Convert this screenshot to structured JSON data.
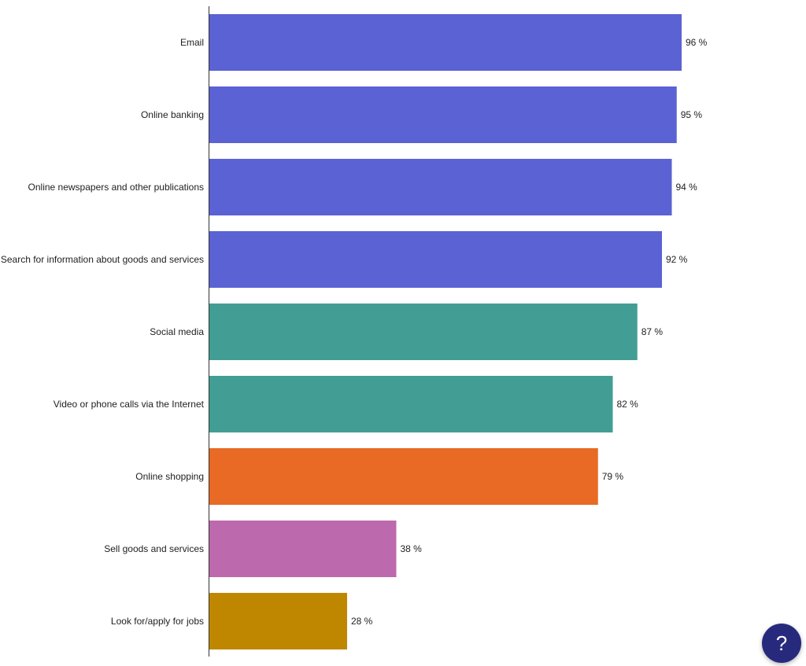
{
  "chart_data": {
    "type": "bar",
    "orientation": "horizontal",
    "categories": [
      "Email",
      "Online banking",
      "Online newspapers and other publications",
      "Search for information about goods and services",
      "Social media",
      "Video or phone calls via the Internet",
      "Online shopping",
      "Sell goods and services",
      "Look for/apply for jobs"
    ],
    "values": [
      96,
      95,
      94,
      92,
      87,
      82,
      79,
      38,
      28
    ],
    "value_suffix": " %",
    "colors": [
      "#5b62d3",
      "#5b62d3",
      "#5b62d3",
      "#5b62d3",
      "#429e94",
      "#429e94",
      "#e86a24",
      "#bd69ad",
      "#bf8700"
    ],
    "xlim": [
      0,
      100
    ],
    "grid": false,
    "title": "",
    "xlabel": "",
    "ylabel": ""
  },
  "help_button": {
    "label": "?"
  }
}
